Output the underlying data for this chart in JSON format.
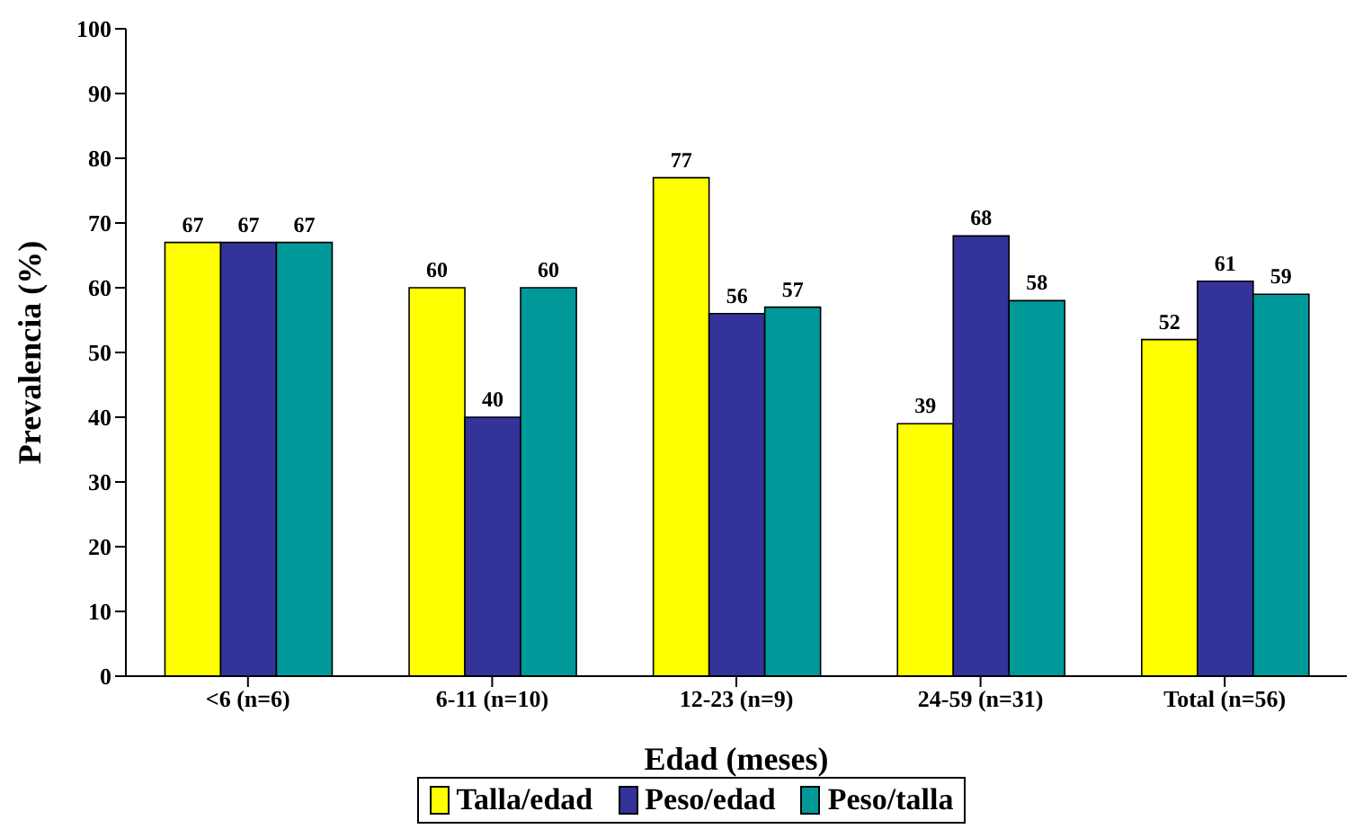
{
  "chart_data": {
    "type": "bar",
    "xlabel": "Edad (meses)",
    "ylabel": "Prevalencia (%)",
    "categories": [
      "<6 (n=6)",
      "6-11 (n=10)",
      "12-23 (n=9)",
      "24-59 (n=31)",
      "Total (n=56)"
    ],
    "series": [
      {
        "name": "Talla/edad",
        "color": "#ffff00",
        "values": [
          67,
          60,
          77,
          39,
          52
        ]
      },
      {
        "name": "Peso/edad",
        "color": "#333399",
        "values": [
          67,
          40,
          56,
          68,
          61
        ]
      },
      {
        "name": "Peso/talla",
        "color": "#009999",
        "values": [
          67,
          60,
          57,
          58,
          59
        ]
      }
    ],
    "ylim": [
      0,
      100
    ],
    "yticks": [
      0,
      10,
      20,
      30,
      40,
      50,
      60,
      70,
      80,
      90,
      100
    ],
    "grid": false,
    "legend": "bottom",
    "data_labels": true
  }
}
